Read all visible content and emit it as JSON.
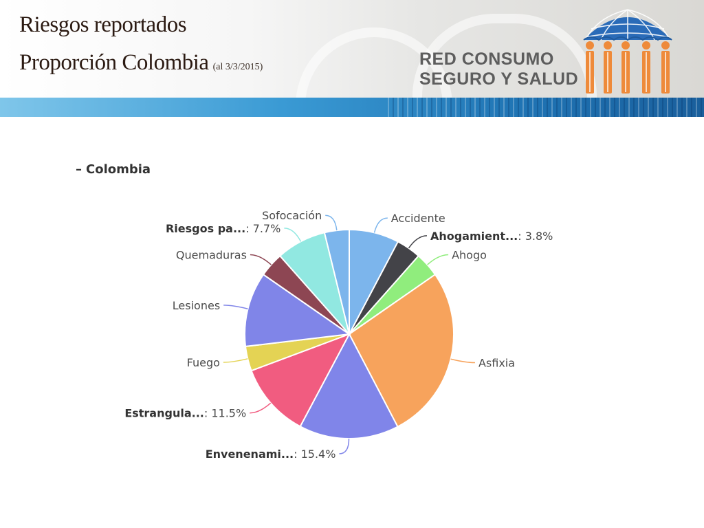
{
  "slide": {
    "title": "Riesgos reportados",
    "subtitle": "Proporción Colombia",
    "date_note": "(al 3/3/2015)"
  },
  "brand": {
    "line1": "RED CONSUMO",
    "line2": "SEGURO Y SALUD",
    "colors": {
      "umbrella": "#2a6bb8",
      "figures": "#ee8a3a",
      "text": "#5d5d5d"
    }
  },
  "chart_data": {
    "type": "pie",
    "series_name": "Colombia",
    "legend_toggle_symbol": "–",
    "slices": [
      {
        "label": "Accidente",
        "value": 7.7,
        "color": "#7cb5ec"
      },
      {
        "label": "Ahogamient...",
        "value": 3.8,
        "shown_value": "3.8%",
        "color": "#434348"
      },
      {
        "label": "Ahogo",
        "value": 3.8,
        "color": "#90ed7d"
      },
      {
        "label": "Asfixia",
        "value": 26.9,
        "color": "#f7a35c"
      },
      {
        "label": "Envenenami...",
        "value": 15.4,
        "shown_value": "15.4%",
        "color": "#8085e9"
      },
      {
        "label": "Estrangula...",
        "value": 11.5,
        "shown_value": "11.5%",
        "color": "#f15c80"
      },
      {
        "label": "Fuego",
        "value": 3.8,
        "color": "#e4d354"
      },
      {
        "label": "Lesiones",
        "value": 11.5,
        "color": "#8085e8"
      },
      {
        "label": "Quemaduras",
        "value": 3.8,
        "color": "#8d4653"
      },
      {
        "label": "Riesgos pa...",
        "value": 7.7,
        "shown_value": "7.7%",
        "color": "#91e8e1"
      },
      {
        "label": "Sofocación",
        "value": 3.8,
        "color": "#7cb5ec"
      }
    ]
  }
}
